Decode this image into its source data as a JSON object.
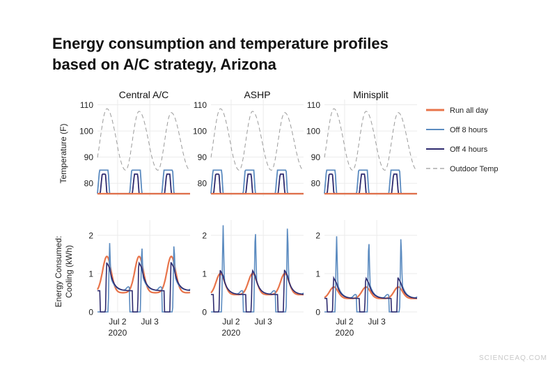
{
  "title_lines": [
    "Energy consumption and temperature profiles",
    "based on A/C strategy, Arizona"
  ],
  "watermark": "SCIENCEAQ.COM",
  "colors": {
    "run_all_day": "#e8744a",
    "off_8_hours": "#5b8bc0",
    "off_4_hours": "#2e2a6e",
    "outdoor_temp": "#9a9a9a",
    "grid": "#ebebeb"
  },
  "chart_data": {
    "type": "line",
    "facets": [
      "Central A/C",
      "ASHP",
      "Minisplit"
    ],
    "x_axis": {
      "range": [
        "2020-07-01 09:00",
        "2020-07-04 06:00"
      ],
      "ticks": [
        {
          "label": "Jul 2",
          "value": "2020-07-02 00:00"
        },
        {
          "label": "Jul 3",
          "value": "2020-07-03 00:00"
        }
      ],
      "year_label": "2020"
    },
    "legend": {
      "placement": "right",
      "entries": [
        {
          "label": "Run all day",
          "key": "run_all_day",
          "style": "solid-thick"
        },
        {
          "label": "Off 8 hours",
          "key": "off_8_hours",
          "style": "solid"
        },
        {
          "label": "Off 4 hours",
          "key": "off_4_hours",
          "style": "solid"
        },
        {
          "label": "Outdoor Temp",
          "key": "outdoor_temp",
          "style": "dashed"
        }
      ]
    },
    "panels": [
      {
        "row": "temperature",
        "ylabel": [
          "Temperature (F)"
        ],
        "ylim": [
          75,
          112
        ],
        "yticks": [
          80,
          90,
          100,
          110
        ],
        "outdoor_temp": {
          "min_hour": 6,
          "max_hour": 16,
          "min": 85,
          "max": 108.5,
          "peaks": [
            {
              "time": "2020-07-01 16:00",
              "value": 108.5
            },
            {
              "time": "2020-07-02 16:00",
              "value": 107.5
            },
            {
              "time": "2020-07-03 16:00",
              "value": 107
            }
          ]
        },
        "run_all_day": {
          "value": 76
        },
        "off_8_hours": {
          "baseline": 76,
          "peak": 85,
          "off_start_hour": 9,
          "off_end_hour": 17
        },
        "off_4_hours": {
          "baseline": 76,
          "peak": 83.5,
          "off_start_hour": 11,
          "off_end_hour": 15
        }
      },
      {
        "row": "energy",
        "ylabel": [
          "Energy Consumed:",
          "Cooling (kWh)"
        ],
        "ylim": [
          0,
          2.4
        ],
        "yticks": [
          0,
          1,
          2
        ],
        "facet_params": [
          {
            "run_peak": 1.45,
            "run_base": 0.5,
            "off8_spike": 1.85,
            "off8_base": 0.55,
            "off4_spike": 1.3,
            "off4_base": 0.55
          },
          {
            "run_peak": 1.0,
            "run_base": 0.45,
            "off8_spike": 2.35,
            "off8_base": 0.45,
            "off4_spike": 1.1,
            "off4_base": 0.45
          },
          {
            "run_peak": 0.65,
            "run_base": 0.35,
            "off8_spike": 2.05,
            "off8_base": 0.35,
            "off4_spike": 0.9,
            "off4_base": 0.35
          }
        ]
      }
    ]
  }
}
